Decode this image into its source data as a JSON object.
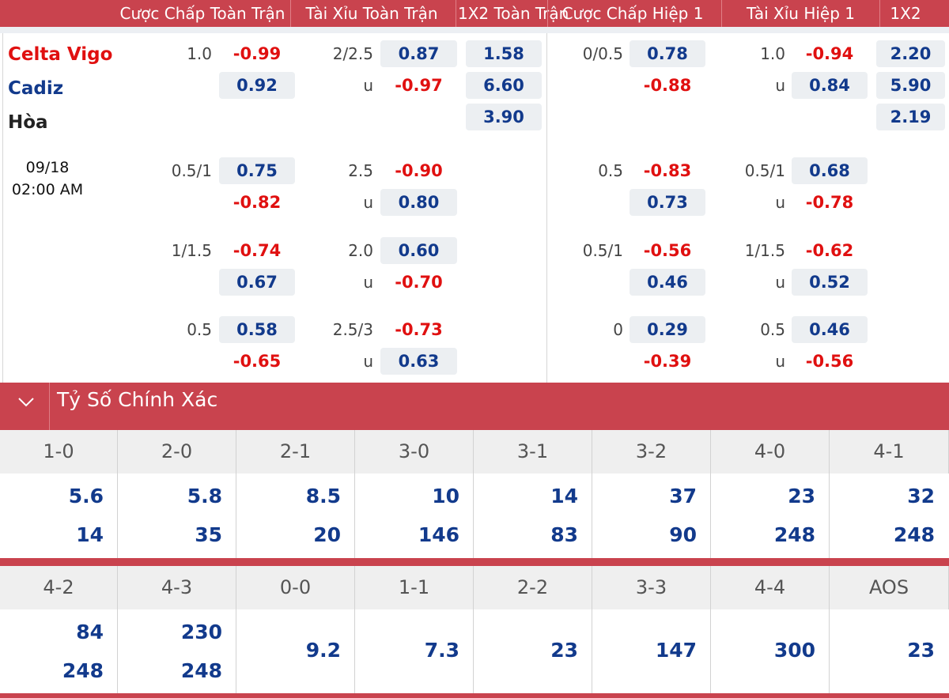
{
  "header": {
    "columns": [
      "Cược Chấp Toàn Trận",
      "Tài Xỉu Toàn Trận",
      "1X2 Toàn Trận",
      "Cược Chấp Hiệp 1",
      "Tài Xỉu Hiệp 1",
      "1X2"
    ]
  },
  "match": {
    "home": "Celta Vigo",
    "away": "Cadiz",
    "draw": "Hòa",
    "date": "09/18",
    "time": "02:00 AM"
  },
  "odds_rows": [
    {
      "ft_hdp": {
        "line": "1.0",
        "home": "-0.99",
        "away": "0.92"
      },
      "ft_ou": {
        "line": "2/2.5",
        "under_label": "u",
        "over": "0.87",
        "under": "-0.97"
      },
      "ft_1x2": {
        "home": "1.58",
        "away": "6.60",
        "draw": "3.90"
      },
      "h1_hdp": {
        "line": "0/0.5",
        "home": "0.78",
        "away": "-0.88"
      },
      "h1_ou": {
        "line": "1.0",
        "under_label": "u",
        "over": "-0.94",
        "under": "0.84"
      },
      "h1_1x2": {
        "home": "2.20",
        "away": "5.90",
        "draw": "2.19"
      }
    },
    {
      "ft_hdp": {
        "line": "0.5/1",
        "home": "0.75",
        "away": "-0.82"
      },
      "ft_ou": {
        "line": "2.5",
        "under_label": "u",
        "over": "-0.90",
        "under": "0.80"
      },
      "h1_hdp": {
        "line": "0.5",
        "home": "-0.83",
        "away": "0.73"
      },
      "h1_ou": {
        "line": "0.5/1",
        "under_label": "u",
        "over": "0.68",
        "under": "-0.78"
      }
    },
    {
      "ft_hdp": {
        "line": "1/1.5",
        "home": "-0.74",
        "away": "0.67"
      },
      "ft_ou": {
        "line": "2.0",
        "under_label": "u",
        "over": "0.60",
        "under": "-0.70"
      },
      "h1_hdp": {
        "line": "0.5/1",
        "home": "-0.56",
        "away": "0.46"
      },
      "h1_ou": {
        "line": "1/1.5",
        "under_label": "u",
        "over": "-0.62",
        "under": "0.52"
      }
    },
    {
      "ft_hdp": {
        "line": "0.5",
        "home": "0.58",
        "away": "-0.65"
      },
      "ft_ou": {
        "line": "2.5/3",
        "under_label": "u",
        "over": "-0.73",
        "under": "0.63"
      },
      "h1_hdp": {
        "line": "0",
        "home": "0.29",
        "away": "-0.39"
      },
      "h1_ou": {
        "line": "0.5",
        "under_label": "u",
        "over": "0.46",
        "under": "-0.56"
      }
    }
  ],
  "correct_score": {
    "title": "Tỷ Số Chính Xác",
    "table1": [
      {
        "score": "1-0",
        "top": "5.6",
        "bottom": "14"
      },
      {
        "score": "2-0",
        "top": "5.8",
        "bottom": "35"
      },
      {
        "score": "2-1",
        "top": "8.5",
        "bottom": "20"
      },
      {
        "score": "3-0",
        "top": "10",
        "bottom": "146"
      },
      {
        "score": "3-1",
        "top": "14",
        "bottom": "83"
      },
      {
        "score": "3-2",
        "top": "37",
        "bottom": "90"
      },
      {
        "score": "4-0",
        "top": "23",
        "bottom": "248"
      },
      {
        "score": "4-1",
        "top": "32",
        "bottom": "248"
      }
    ],
    "table2": [
      {
        "score": "4-2",
        "top": "84",
        "bottom": "248"
      },
      {
        "score": "4-3",
        "top": "230",
        "bottom": "248"
      },
      {
        "score": "0-0",
        "single": "9.2"
      },
      {
        "score": "1-1",
        "single": "7.3"
      },
      {
        "score": "2-2",
        "single": "23"
      },
      {
        "score": "3-3",
        "single": "147"
      },
      {
        "score": "4-4",
        "single": "300"
      },
      {
        "score": "AOS",
        "single": "23"
      }
    ]
  },
  "colors": {
    "accent": "#c9434e",
    "positive": "#123a8c",
    "negative": "#e01010",
    "home": "#e01010",
    "away": "#123a8c"
  }
}
